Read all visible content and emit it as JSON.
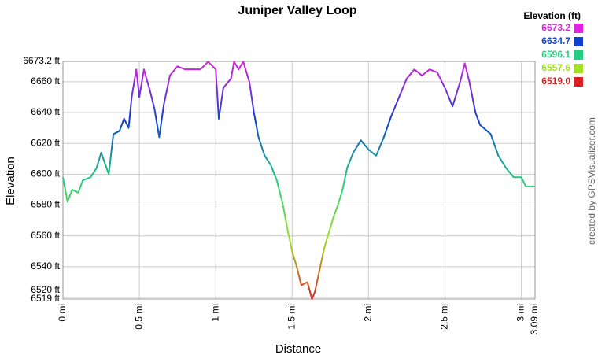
{
  "chart_data": {
    "type": "line",
    "title": "Juniper Valley Loop",
    "xlabel": "Distance",
    "ylabel": "Elevation",
    "credit": "created by GPSVisualizer.com",
    "legend_title": "Elevation (ft)",
    "color_scale": [
      {
        "value": 6673.2,
        "label": "6673.2",
        "color": "#e020e0"
      },
      {
        "value": 6634.7,
        "label": "6634.7",
        "color": "#1040d0"
      },
      {
        "value": 6596.1,
        "label": "6596.1",
        "color": "#20d080"
      },
      {
        "value": 6557.6,
        "label": "6557.6",
        "color": "#a0e020"
      },
      {
        "value": 6519.0,
        "label": "6519.0",
        "color": "#e02020"
      }
    ],
    "grid": true,
    "xlim": [
      0,
      3.09
    ],
    "ylim": [
      6519,
      6673.2
    ],
    "xticks": [
      {
        "value": 0,
        "label": "0 mi"
      },
      {
        "value": 0.5,
        "label": "0.5 mi"
      },
      {
        "value": 1,
        "label": "1 mi"
      },
      {
        "value": 1.5,
        "label": "1.5 mi"
      },
      {
        "value": 2,
        "label": "2 mi"
      },
      {
        "value": 2.5,
        "label": "2.5 mi"
      },
      {
        "value": 3,
        "label": "3 mi"
      },
      {
        "value": 3.09,
        "label": "3.09 mi"
      }
    ],
    "yticks": [
      {
        "value": 6519,
        "label": "6519 ft"
      },
      {
        "value": 6520,
        "label": "6520 ft"
      },
      {
        "value": 6540,
        "label": "6540 ft"
      },
      {
        "value": 6560,
        "label": "6560 ft"
      },
      {
        "value": 6580,
        "label": "6580 ft"
      },
      {
        "value": 6600,
        "label": "6600 ft"
      },
      {
        "value": 6620,
        "label": "6620 ft"
      },
      {
        "value": 6640,
        "label": "6640 ft"
      },
      {
        "value": 6660,
        "label": "6660 ft"
      },
      {
        "value": 6673.2,
        "label": "6673.2 ft"
      }
    ],
    "x": [
      0,
      0.03,
      0.06,
      0.1,
      0.13,
      0.18,
      0.22,
      0.25,
      0.3,
      0.33,
      0.37,
      0.4,
      0.43,
      0.45,
      0.48,
      0.5,
      0.53,
      0.57,
      0.6,
      0.63,
      0.66,
      0.7,
      0.75,
      0.8,
      0.85,
      0.9,
      0.95,
      1.0,
      1.02,
      1.05,
      1.1,
      1.12,
      1.15,
      1.18,
      1.22,
      1.25,
      1.28,
      1.32,
      1.36,
      1.4,
      1.44,
      1.47,
      1.5,
      1.53,
      1.56,
      1.6,
      1.63,
      1.65,
      1.68,
      1.71,
      1.74,
      1.77,
      1.8,
      1.83,
      1.86,
      1.9,
      1.95,
      2.0,
      2.05,
      2.1,
      2.15,
      2.2,
      2.25,
      2.3,
      2.35,
      2.4,
      2.45,
      2.5,
      2.55,
      2.6,
      2.63,
      2.66,
      2.7,
      2.73,
      2.8,
      2.85,
      2.9,
      2.95,
      3.0,
      3.03,
      3.09
    ],
    "series": [
      {
        "values": [
          6598,
          6582,
          6590,
          6588,
          6596,
          6598,
          6604,
          6614,
          6600,
          6626,
          6628,
          6636,
          6630,
          6650,
          6668,
          6650,
          6668,
          6654,
          6642,
          6624,
          6645,
          6664,
          6670,
          6668,
          6668,
          6668,
          6673,
          6668,
          6636,
          6656,
          6662,
          6673,
          6668,
          6673,
          6660,
          6640,
          6624,
          6612,
          6606,
          6596,
          6580,
          6564,
          6550,
          6540,
          6528,
          6530,
          6519,
          6524,
          6538,
          6552,
          6562,
          6572,
          6580,
          6590,
          6604,
          6614,
          6622,
          6616,
          6612,
          6624,
          6638,
          6650,
          6662,
          6668,
          6664,
          6668,
          6666,
          6656,
          6644,
          6660,
          6672,
          6660,
          6640,
          6632,
          6626,
          6612,
          6604,
          6598,
          6598,
          6592,
          6592
        ]
      }
    ]
  }
}
